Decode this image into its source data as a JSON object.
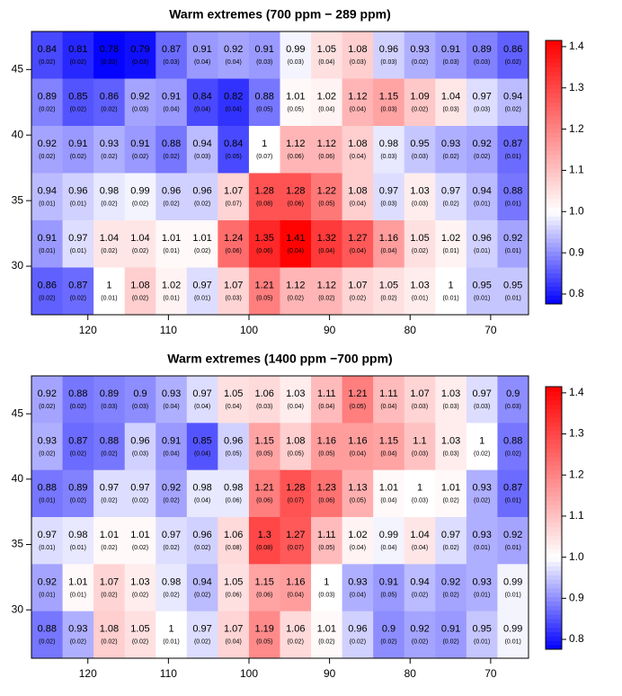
{
  "chart_data": [
    {
      "type": "heatmap",
      "title": "Warm extremes (700 ppm − 289 ppm)",
      "xlim": [
        127,
        65.3
      ],
      "ylim": [
        26.3,
        47.9
      ],
      "xticks": [
        120,
        110,
        100,
        90,
        80,
        70
      ],
      "yticks": [
        30,
        35,
        40,
        45
      ],
      "clim": [
        0.776,
        1.415
      ],
      "color_mid": 1,
      "colors": [
        "#0000ff",
        "#ffffff",
        "#ff0000"
      ],
      "cticks": [
        0.8,
        0.9,
        {
          "value": 1,
          "label": "1.0"
        },
        1.1,
        1.2,
        1.3,
        1.4
      ],
      "values": [
        [
          0.84,
          0.81,
          0.78,
          0.79,
          0.87,
          0.91,
          0.92,
          0.91,
          0.99,
          1.05,
          1.08,
          0.96,
          0.93,
          0.91,
          0.89,
          0.86
        ],
        [
          0.89,
          0.85,
          0.86,
          0.92,
          0.91,
          0.84,
          0.82,
          0.88,
          1.01,
          1.02,
          1.12,
          1.15,
          1.09,
          1.04,
          0.97,
          0.94
        ],
        [
          0.92,
          0.91,
          0.93,
          0.91,
          0.88,
          0.94,
          0.84,
          1,
          1.12,
          1.12,
          1.08,
          0.98,
          0.95,
          0.93,
          0.92,
          0.87
        ],
        [
          0.94,
          0.96,
          0.98,
          0.99,
          0.96,
          0.96,
          1.07,
          1.28,
          1.28,
          1.22,
          1.08,
          0.97,
          1.03,
          0.97,
          0.94,
          0.88
        ],
        [
          0.91,
          0.97,
          1.04,
          1.04,
          1.01,
          1.01,
          1.24,
          1.35,
          1.41,
          1.32,
          1.27,
          1.16,
          1.05,
          1.02,
          0.96,
          0.92
        ],
        [
          0.86,
          0.87,
          1,
          1.08,
          1.02,
          0.97,
          1.07,
          1.21,
          1.12,
          1.12,
          1.07,
          1.05,
          1.03,
          1,
          0.95,
          0.95
        ]
      ],
      "se_labels": [
        [
          "(0.02)",
          "(0.02)",
          "(0.03)",
          "(0.03)",
          "(0.03)",
          "(0.04)",
          "(0.04)",
          "(0.03)",
          "(0.03)",
          "(0.04)",
          "(0.03)",
          "(0.03)",
          "(0.02)",
          "(0.03)",
          "(0.03)",
          "(0.02)"
        ],
        [
          "(0.02)",
          "(0.02)",
          "(0.02)",
          "(0.03)",
          "(0.04)",
          "(0.04)",
          "(0.04)",
          "(0.05)",
          "(0.05)",
          "(0.04)",
          "(0.04)",
          "(0.03)",
          "(0.02)",
          "(0.03)",
          "(0.03)",
          "(0.02)"
        ],
        [
          "(0.02)",
          "(0.02)",
          "(0.02)",
          "(0.02)",
          "(0.02)",
          "(0.03)",
          "(0.05)",
          "(0.07)",
          "(0.06)",
          "(0.06)",
          "(0.04)",
          "(0.03)",
          "(0.03)",
          "(0.02)",
          "(0.02)",
          "(0.01)"
        ],
        [
          "(0.01)",
          "(0.01)",
          "(0.02)",
          "(0.02)",
          "(0.02)",
          "(0.02)",
          "(0.07)",
          "(0.08)",
          "(0.06)",
          "(0.05)",
          "(0.04)",
          "(0.03)",
          "(0.03)",
          "(0.02)",
          "(0.01)",
          "(0.01)"
        ],
        [
          "(0.01)",
          "(0.01)",
          "(0.02)",
          "(0.02)",
          "(0.01)",
          "(0.02)",
          "(0.06)",
          "(0.06)",
          "(0.04)",
          "(0.04)",
          "(0.04)",
          "(0.04)",
          "(0.02)",
          "(0.01)",
          "(0.01)",
          "(0.01)"
        ],
        [
          "(0.02)",
          "(0.02)",
          "(0.01)",
          "(0.02)",
          "(0.01)",
          "(0.01)",
          "(0.03)",
          "(0.05)",
          "(0.02)",
          "(0.02)",
          "(0.02)",
          "(0.02)",
          "(0.01)",
          "(0.01)",
          "(0.01)",
          "(0.01)"
        ]
      ]
    },
    {
      "type": "heatmap",
      "title": "Warm extremes (1400 ppm −700 ppm)",
      "xlim": [
        127,
        65.3
      ],
      "ylim": [
        26.3,
        47.9
      ],
      "xticks": [
        120,
        110,
        100,
        90,
        80,
        70
      ],
      "yticks": [
        30,
        35,
        40,
        45
      ],
      "clim": [
        0.776,
        1.415
      ],
      "color_mid": 1,
      "colors": [
        "#0000ff",
        "#ffffff",
        "#ff0000"
      ],
      "cticks": [
        0.8,
        0.9,
        {
          "value": 1,
          "label": "1.0"
        },
        1.1,
        1.2,
        1.3,
        1.4
      ],
      "values": [
        [
          0.92,
          0.88,
          0.89,
          0.9,
          0.93,
          0.97,
          1.05,
          1.06,
          1.03,
          1.11,
          1.21,
          1.11,
          1.07,
          1.03,
          0.97,
          0.9
        ],
        [
          0.93,
          0.87,
          0.88,
          0.96,
          0.91,
          0.85,
          0.96,
          1.15,
          1.08,
          1.16,
          1.16,
          1.15,
          1.1,
          1.03,
          1,
          0.88
        ],
        [
          0.88,
          0.89,
          0.97,
          0.97,
          0.92,
          0.98,
          0.98,
          1.21,
          1.28,
          1.23,
          1.13,
          1.01,
          1,
          1.01,
          0.93,
          0.87
        ],
        [
          0.97,
          0.98,
          1.01,
          1.01,
          0.97,
          0.96,
          1.06,
          1.3,
          1.27,
          1.11,
          1.02,
          0.99,
          1.04,
          0.97,
          0.93,
          0.92
        ],
        [
          0.92,
          1.01,
          1.07,
          1.03,
          0.98,
          0.94,
          1.05,
          1.15,
          1.16,
          1,
          0.93,
          0.91,
          0.94,
          0.92,
          0.93,
          0.99
        ],
        [
          0.88,
          0.93,
          1.08,
          1.05,
          1,
          0.97,
          1.07,
          1.19,
          1.06,
          1.01,
          0.96,
          0.9,
          0.92,
          0.91,
          0.95,
          0.99
        ]
      ],
      "se_labels": [
        [
          "(0.02)",
          "(0.02)",
          "(0.03)",
          "(0.03)",
          "(0.04)",
          "(0.04)",
          "(0.04)",
          "(0.03)",
          "(0.04)",
          "(0.04)",
          "(0.05)",
          "(0.04)",
          "(0.03)",
          "(0.03)",
          "(0.03)",
          "(0.03)"
        ],
        [
          "(0.02)",
          "(0.02)",
          "(0.02)",
          "(0.03)",
          "(0.04)",
          "(0.04)",
          "(0.05)",
          "(0.05)",
          "(0.05)",
          "(0.05)",
          "(0.04)",
          "(0.04)",
          "(0.03)",
          "(0.03)",
          "(0.02)",
          "(0.02)"
        ],
        [
          "(0.01)",
          "(0.02)",
          "(0.02)",
          "(0.02)",
          "(0.02)",
          "(0.04)",
          "(0.06)",
          "(0.06)",
          "(0.07)",
          "(0.06)",
          "(0.05)",
          "(0.04)",
          "(0.03)",
          "(0.02)",
          "(0.02)",
          "(0.01)"
        ],
        [
          "(0.01)",
          "(0.01)",
          "(0.02)",
          "(0.02)",
          "(0.02)",
          "(0.02)",
          "(0.08)",
          "(0.08)",
          "(0.07)",
          "(0.05)",
          "(0.04)",
          "(0.04)",
          "(0.04)",
          "(0.02)",
          "(0.01)",
          "(0.01)"
        ],
        [
          "(0.01)",
          "(0.01)",
          "(0.02)",
          "(0.02)",
          "(0.02)",
          "(0.02)",
          "(0.06)",
          "(0.06)",
          "(0.04)",
          "(0.03)",
          "(0.04)",
          "(0.05)",
          "(0.02)",
          "(0.02)",
          "(0.01)",
          "(0.01)"
        ],
        [
          "(0.02)",
          "(0.02)",
          "(0.02)",
          "(0.02)",
          "(0.01)",
          "(0.02)",
          "(0.04)",
          "(0.05)",
          "(0.02)",
          "(0.02)",
          "(0.02)",
          "(0.02)",
          "(0.02)",
          "(0.02)",
          "(0.01)",
          "(0.01)"
        ]
      ]
    }
  ]
}
